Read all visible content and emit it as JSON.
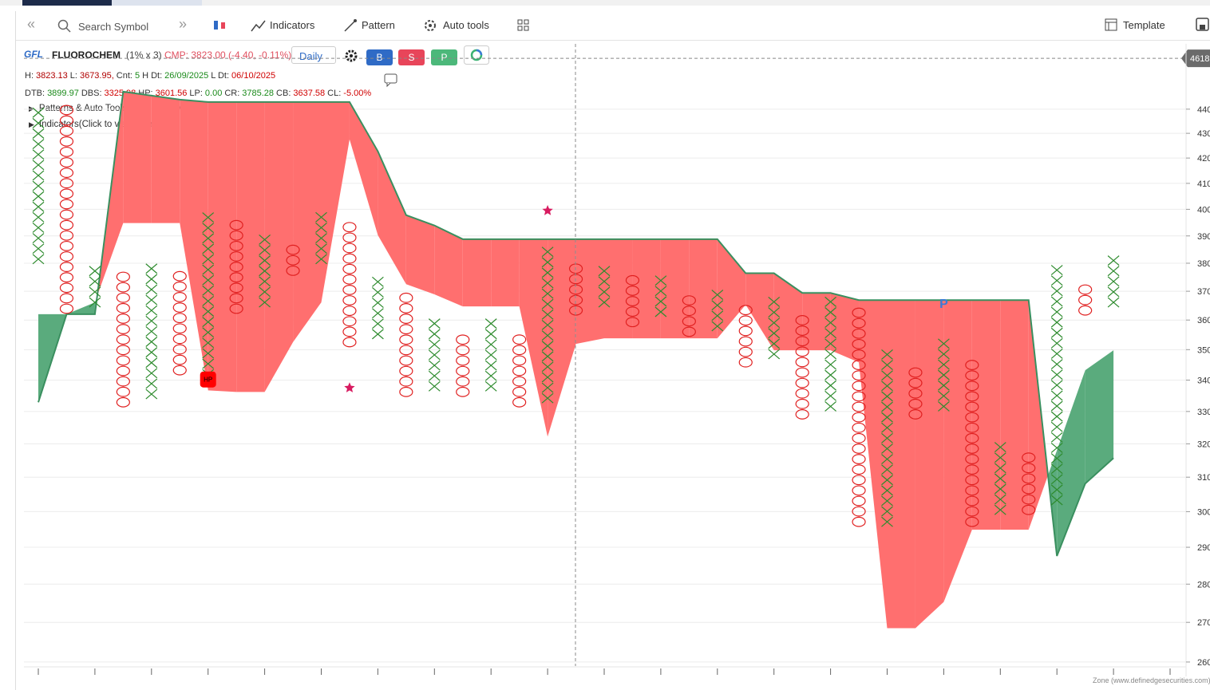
{
  "toolbar": {
    "search_placeholder": "Search Symbol",
    "buttons": [
      "Indicators",
      "Pattern",
      "Auto tools",
      "Template"
    ]
  },
  "header": {
    "logo": "GFL",
    "symbol": "FLUOROCHEM",
    "box": "(1% x 3)",
    "cmp": "CMP: 3823.00 (-4.40, -0.11%)",
    "timeframe": "Daily",
    "actions": [
      "B",
      "S",
      "P"
    ]
  },
  "info_lines": [
    [
      {
        "text": "H:",
        "color": "#333"
      },
      {
        "text": "3823.13",
        "color": "#b00000"
      },
      {
        "text": "L:",
        "color": "#333"
      },
      {
        "text": "3673.95,",
        "color": "#b00000"
      },
      {
        "text": "Cnt:",
        "color": "#333"
      },
      {
        "text": "5",
        "color": "#1a8a1a"
      },
      {
        "text": "H Dt:",
        "color": "#333"
      },
      {
        "text": "26/09/2025",
        "color": "#1a8a1a"
      },
      {
        "text": "L Dt:",
        "color": "#333"
      },
      {
        "text": "06/10/2025",
        "color": "#d00000"
      }
    ],
    [
      {
        "text": "DTB:",
        "color": "#333"
      },
      {
        "text": "3899.97",
        "color": "#1a8a1a"
      },
      {
        "text": "DBS:",
        "color": "#333"
      },
      {
        "text": "3325.98",
        "color": "#d00000"
      },
      {
        "text": "HP:",
        "color": "#333"
      },
      {
        "text": "3601.56",
        "color": "#d00000"
      },
      {
        "text": "LP:",
        "color": "#333"
      },
      {
        "text": "0.00",
        "color": "#1a8a1a"
      },
      {
        "text": "CR:",
        "color": "#333"
      },
      {
        "text": "3785.28",
        "color": "#1a8a1a"
      },
      {
        "text": "CB:",
        "color": "#333"
      },
      {
        "text": "3637.58",
        "color": "#d00000"
      },
      {
        "text": "CL:",
        "color": "#333"
      },
      {
        "text": "-5.00%",
        "color": "#d00000"
      }
    ]
  ],
  "toggles": [
    "Patterns & Auto Tools(Click to view/hide)",
    "Indicators(Click to view/hide)"
  ],
  "chart_data": {
    "type": "pnf",
    "box_pct": 1,
    "log": true,
    "ylim": [
      2590,
      4682
    ],
    "yticks": [
      2600,
      2700,
      2800,
      2900,
      3000,
      3100,
      3200,
      3300,
      3400,
      3500,
      3600,
      3700,
      3800,
      3900,
      4000,
      4100,
      4200,
      4300,
      4400
    ],
    "grid": true,
    "x_color": "#2e8b2e",
    "o_color": "#e02020",
    "columns": [
      {
        "type": "X",
        "low": 3815,
        "high": 4407
      },
      {
        "type": "O",
        "low": 3639,
        "high": 4390
      },
      {
        "type": "X",
        "low": 3661,
        "high": 3787
      },
      {
        "type": "O",
        "low": 3329,
        "high": 3745
      },
      {
        "type": "X",
        "low": 3355,
        "high": 3787
      },
      {
        "type": "O",
        "low": 3432,
        "high": 3745
      },
      {
        "type": "X",
        "low": 3419,
        "high": 3984
      },
      {
        "type": "O",
        "low": 3639,
        "high": 3939
      },
      {
        "type": "X",
        "low": 3661,
        "high": 3903
      },
      {
        "type": "O",
        "low": 3773,
        "high": 3859
      },
      {
        "type": "X",
        "low": 3815,
        "high": 3984
      },
      {
        "type": "O",
        "low": 3525,
        "high": 3939
      },
      {
        "type": "X",
        "low": 3552,
        "high": 3722
      },
      {
        "type": "O",
        "low": 3362,
        "high": 3675
      },
      {
        "type": "X",
        "low": 3380,
        "high": 3579
      },
      {
        "type": "O",
        "low": 3362,
        "high": 3530
      },
      {
        "type": "X",
        "low": 3380,
        "high": 3579
      },
      {
        "type": "O",
        "low": 3329,
        "high": 3530
      },
      {
        "type": "X",
        "low": 3342,
        "high": 3830
      },
      {
        "type": "O",
        "low": 3633,
        "high": 3787
      },
      {
        "type": "X",
        "low": 3661,
        "high": 3759
      },
      {
        "type": "O",
        "low": 3593,
        "high": 3722
      },
      {
        "type": "X",
        "low": 3628,
        "high": 3722
      },
      {
        "type": "O",
        "low": 3560,
        "high": 3683
      },
      {
        "type": "X",
        "low": 3579,
        "high": 3689
      },
      {
        "type": "O",
        "low": 3458,
        "high": 3647
      },
      {
        "type": "X",
        "low": 3485,
        "high": 3647
      },
      {
        "type": "O",
        "low": 3291,
        "high": 3606
      },
      {
        "type": "X",
        "low": 3316,
        "high": 3653
      },
      {
        "type": "O",
        "low": 2971,
        "high": 3612
      },
      {
        "type": "X",
        "low": 2971,
        "high": 3472
      },
      {
        "type": "O",
        "low": 3291,
        "high": 3432
      },
      {
        "type": "X",
        "low": 3316,
        "high": 3506
      },
      {
        "type": "O",
        "low": 2971,
        "high": 3466
      },
      {
        "type": "X",
        "low": 3005,
        "high": 3205
      },
      {
        "type": "O",
        "low": 3005,
        "high": 3168
      },
      {
        "type": "X",
        "low": 3033,
        "high": 3759
      },
      {
        "type": "O",
        "low": 3633,
        "high": 3722
      },
      {
        "type": "X",
        "low": 3661,
        "high": 3796
      }
    ],
    "cloud": {
      "up_color": "#ff6f6f",
      "down_color": "#5aab7d",
      "line_color": "#3a8f5f",
      "span_a": [
        3329,
        3620,
        3620,
        4474,
        4457,
        4440,
        4430,
        4430,
        4430,
        4430,
        4430,
        4430,
        4227,
        3978,
        3939,
        3888,
        3888,
        3888,
        3888,
        3888,
        3888,
        3888,
        3888,
        3888,
        3888,
        3764,
        3764,
        3694,
        3694,
        3669,
        3669,
        3669,
        3669,
        3669,
        3669,
        3669,
        2876,
        3081,
        3157
      ],
      "span_b": [
        3620,
        3620,
        3661,
        3948,
        3948,
        3948,
        3367,
        3362,
        3362,
        3525,
        3661,
        4275,
        3903,
        3725,
        3689,
        3647,
        3647,
        3647,
        3222,
        3519,
        3538,
        3538,
        3538,
        3538,
        3538,
        3653,
        3498,
        3498,
        3498,
        3458,
        2685,
        2685,
        2753,
        2949,
        2949,
        2949,
        3180,
        3432,
        3498
      ]
    },
    "markers": [
      {
        "type": "star",
        "column": 18,
        "value": 3995,
        "color": "#d81b60"
      },
      {
        "type": "star",
        "column": 11,
        "value": 3375,
        "color": "#d81b60"
      },
      {
        "type": "label",
        "column": 6,
        "value": 3402,
        "text": "HP",
        "color": "#ff0000"
      },
      {
        "type": "label",
        "column": 32,
        "value": 3658,
        "text": "P",
        "color": "#3a7bd5"
      }
    ],
    "crosshair": {
      "value": 4618,
      "label": "4618"
    }
  },
  "watermark": "Zone (www.definedgesecurities.com)"
}
